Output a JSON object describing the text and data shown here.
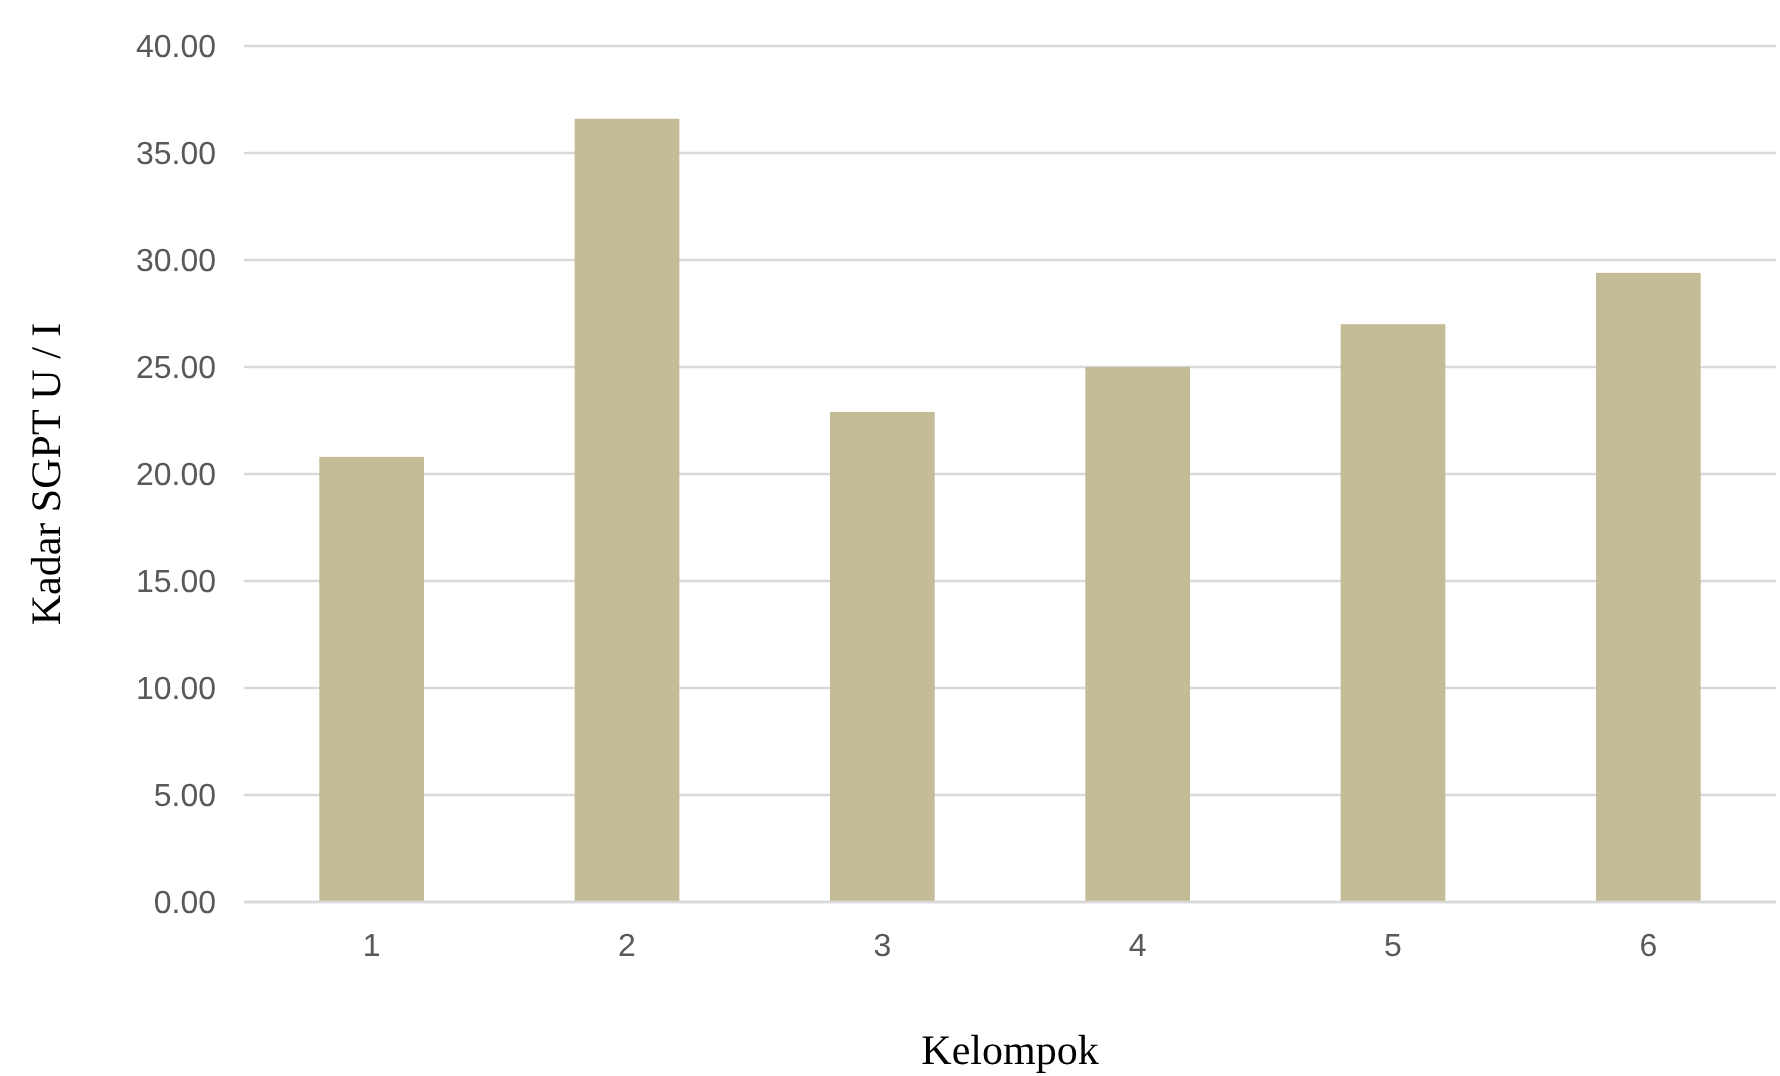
{
  "chart_data": {
    "type": "bar",
    "xlabel": "Kelompok",
    "ylabel": "Kadar SGPT U / I",
    "categories": [
      "1",
      "2",
      "3",
      "4",
      "5",
      "6"
    ],
    "values": [
      20.8,
      36.6,
      22.9,
      25.0,
      27.0,
      29.4
    ],
    "color": "#c4bc96",
    "ylim": [
      0,
      40
    ],
    "yticks": [
      {
        "value": 0,
        "label": "0.00"
      },
      {
        "value": 5,
        "label": "5.00"
      },
      {
        "value": 10,
        "label": "10.00"
      },
      {
        "value": 15,
        "label": "15.00"
      },
      {
        "value": 20,
        "label": "20.00"
      },
      {
        "value": 25,
        "label": "25.00"
      },
      {
        "value": 30,
        "label": "30.00"
      },
      {
        "value": 35,
        "label": "35.00"
      },
      {
        "value": 40,
        "label": "40.00"
      }
    ],
    "grid": "y"
  }
}
